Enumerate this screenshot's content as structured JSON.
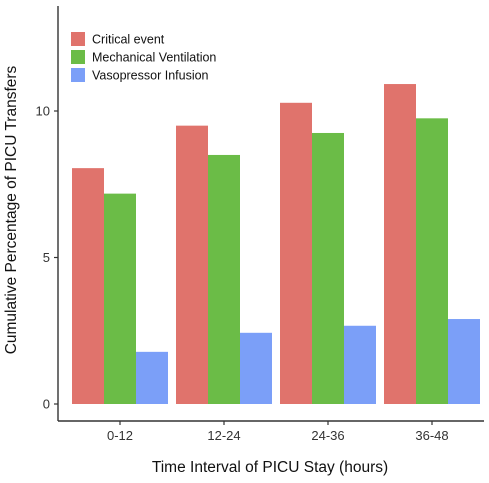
{
  "chart_data": {
    "type": "bar",
    "title": "",
    "xlabel": "Time Interval of PICU Stay (hours)",
    "ylabel": "Cumulative Percentage of PICU Transfers",
    "categories": [
      "0-12",
      "12-24",
      "24-36",
      "36-48"
    ],
    "ylim": [
      0,
      13.5
    ],
    "yticks": [
      0,
      5,
      10
    ],
    "grid": false,
    "legend_position": "top-left",
    "series": [
      {
        "name": "Critical event",
        "color": "#E0736C",
        "values": [
          8.05,
          9.5,
          10.28,
          10.92
        ]
      },
      {
        "name": "Mechanical Ventilation",
        "color": "#6BBC47",
        "values": [
          7.18,
          8.5,
          9.25,
          9.75
        ]
      },
      {
        "name": "Vasopressor Infusion",
        "color": "#7B9FF8",
        "values": [
          1.78,
          2.43,
          2.67,
          2.9
        ]
      }
    ]
  }
}
